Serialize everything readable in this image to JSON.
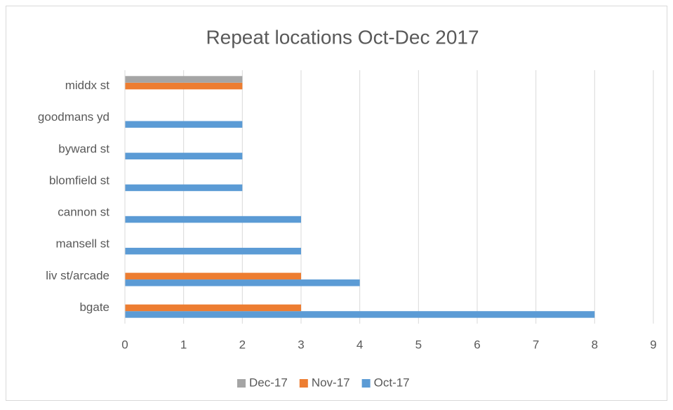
{
  "chart_data": {
    "type": "hbar",
    "title": "Repeat locations Oct-Dec 2017",
    "categories": [
      "bgate",
      "liv st/arcade",
      "mansell st",
      "cannon st",
      "blomfield st",
      "byward st",
      "goodmans yd",
      "middx st"
    ],
    "series": [
      {
        "name": "Oct-17",
        "color": "#5b9bd5",
        "values": [
          8,
          4,
          3,
          3,
          2,
          2,
          2,
          null
        ]
      },
      {
        "name": "Nov-17",
        "color": "#ed7d31",
        "values": [
          3,
          3,
          null,
          null,
          null,
          null,
          null,
          2
        ]
      },
      {
        "name": "Dec-17",
        "color": "#a5a5a5",
        "values": [
          null,
          null,
          null,
          null,
          null,
          null,
          null,
          2
        ]
      }
    ],
    "xlim": [
      0,
      9
    ],
    "xticks": [
      0,
      1,
      2,
      3,
      4,
      5,
      6,
      7,
      8,
      9
    ],
    "grid": true,
    "legend": "bottom"
  }
}
